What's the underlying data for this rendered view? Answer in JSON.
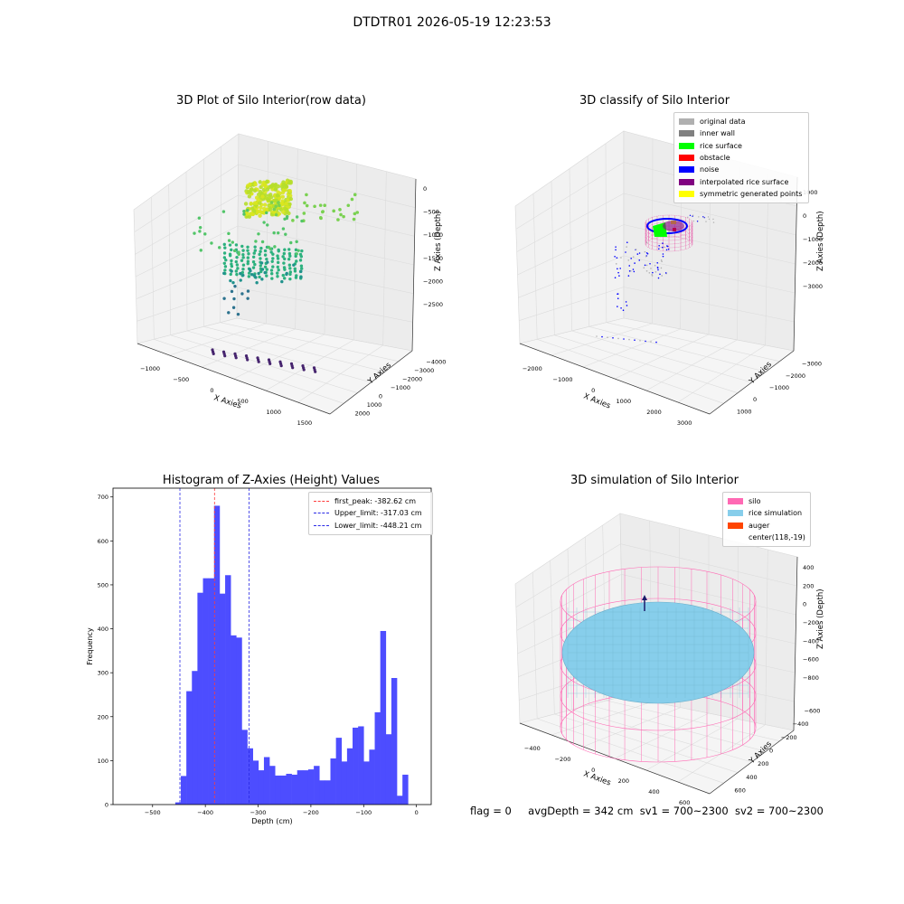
{
  "figure": {
    "suptitle": "DTDTR01 2026-05-19 12:23:53",
    "footer": {
      "flag": "flag = 0",
      "avg_depth": "avgDepth = 342 cm",
      "sv1": "sv1 = 700~2300",
      "sv2": "sv2 = 700~2300"
    }
  },
  "chart_data": [
    {
      "type": "scatter",
      "title": "3D Plot of Silo Interior(row data)",
      "xlabel": "X Axies",
      "ylabel": "Y Axies",
      "zlabel": "Z Axies (Depth)",
      "x_ticks": [
        "−1000",
        "−500",
        "0",
        "500",
        "1000",
        "1500"
      ],
      "y_ticks": [
        "2000",
        "1000",
        "0",
        "−1000",
        "−2000",
        "−3000",
        "−4000"
      ],
      "z_ticks": [
        "0",
        "−500",
        "−1000",
        "−1500",
        "−2000",
        "−2500"
      ],
      "colormap": "viridis"
    },
    {
      "type": "scatter",
      "title": "3D classify of Silo Interior",
      "xlabel": "X Axies",
      "ylabel": "Y Axies",
      "zlabel": "Z Axies (Depth)",
      "x_ticks": [
        "−2000",
        "−1000",
        "0",
        "1000",
        "2000",
        "3000"
      ],
      "y_ticks": [
        "1000",
        "0",
        "−1000",
        "−2000",
        "−3000"
      ],
      "z_ticks": [
        "1000",
        "0",
        "−1000",
        "−2000",
        "−3000"
      ],
      "legend": [
        {
          "label": "original data",
          "color": "#b0b0b0"
        },
        {
          "label": "inner wall",
          "color": "#808080"
        },
        {
          "label": "rice surface",
          "color": "#00ff00"
        },
        {
          "label": "obstacle",
          "color": "#ff0000"
        },
        {
          "label": "noise",
          "color": "#0000ff"
        },
        {
          "label": "interpolated rice surface",
          "color": "#800080"
        },
        {
          "label": "symmetric generated points",
          "color": "#ffff00"
        }
      ]
    },
    {
      "type": "bar",
      "title": "Histogram of Z-Axies (Height) Values",
      "xlabel": "Depth (cm)",
      "ylabel": "Frequency",
      "xlim": [
        -575,
        28
      ],
      "ylim": [
        0,
        720
      ],
      "x_ticks": [
        -500,
        -400,
        -300,
        -200,
        -100,
        0
      ],
      "y_ticks": [
        0,
        100,
        200,
        300,
        400,
        500,
        600,
        700
      ],
      "bin_width": 10.5,
      "bin_start": -457,
      "values": [
        5,
        65,
        258,
        304,
        482,
        515,
        515,
        680,
        480,
        522,
        385,
        380,
        170,
        128,
        100,
        78,
        108,
        88,
        66,
        66,
        70,
        68,
        78,
        78,
        80,
        88,
        55,
        55,
        105,
        152,
        98,
        128,
        175,
        178,
        98,
        125,
        210,
        395,
        160,
        288,
        20,
        68
      ],
      "bar_color": "#4d4dff",
      "vlines": [
        {
          "label": "first_peak: -382.62 cm",
          "value": -382.62,
          "color": "#ff3b3b"
        },
        {
          "label": "Upper_limit: -317.03 cm",
          "value": -317.03,
          "color": "#2a2ae6"
        },
        {
          "label": "Lower_limit: -448.21 cm",
          "value": -448.21,
          "color": "#2a2ae6"
        }
      ]
    },
    {
      "type": "scatter",
      "title": "3D simulation of Silo Interior",
      "xlabel": "X Axies",
      "ylabel": "Y Axies",
      "zlabel": "Z Axies (Depth)",
      "x_ticks": [
        "−400",
        "−200",
        "0",
        "200",
        "400",
        "600"
      ],
      "y_ticks": [
        "600",
        "400",
        "200",
        "0",
        "−200",
        "−400",
        "−600"
      ],
      "z_ticks": [
        "400",
        "200",
        "0",
        "−200",
        "−400",
        "−600",
        "−800"
      ],
      "legend": [
        {
          "label": "silo",
          "color": "#ff69b4"
        },
        {
          "label": "rice simulation",
          "color": "#87ceeb"
        },
        {
          "label": "auger",
          "color": "#ff4500"
        },
        {
          "label": "center(118,-19)",
          "color": ""
        }
      ]
    }
  ]
}
